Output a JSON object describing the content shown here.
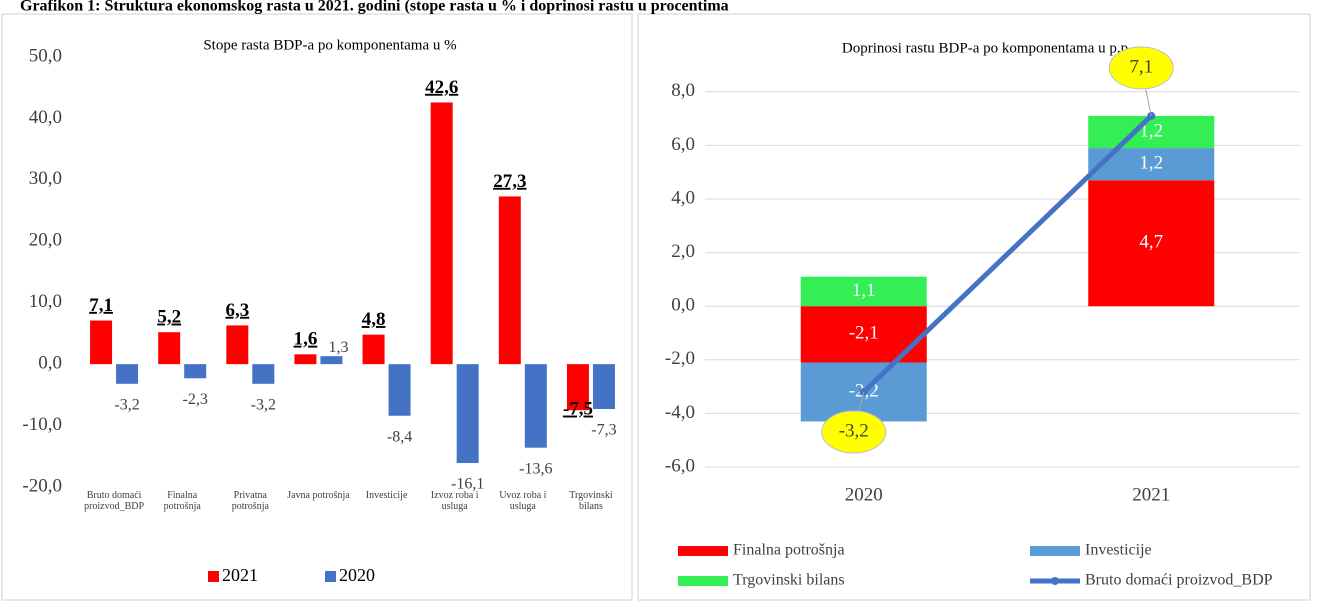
{
  "title": "Grafikon 1: Struktura ekonomskog rasta u 2021. godini (stope rasta u % i doprinosi rastu u procentima",
  "chart_data": [
    {
      "type": "bar",
      "title": "Stope rasta BDP-a po komponentama u %",
      "categories": [
        "Bruto domaći proizvod_BDP",
        "Finalna potrošnja",
        "Privatna potrošnja",
        "Javna potrošnja",
        "Investicije",
        "Izvoz roba i usluga",
        "Uvoz roba i usluga",
        "Trgovinski bilans"
      ],
      "series": [
        {
          "name": "2021",
          "color": "#ff0000",
          "values": [
            7.1,
            5.2,
            6.3,
            1.6,
            4.8,
            42.6,
            27.3,
            -7.5
          ],
          "value_labels": [
            "7,1",
            "5,2",
            "6,3",
            "1,6",
            "4,8",
            "42,6",
            "27,3",
            "-7,5"
          ]
        },
        {
          "name": "2020",
          "color": "#4472c4",
          "values": [
            -3.2,
            -2.3,
            -3.2,
            1.3,
            -8.4,
            -16.1,
            -13.6,
            -7.3
          ],
          "value_labels": [
            "-3,2",
            "-2,3",
            "-3,2",
            "1,3",
            "-8,4",
            "-16,1",
            "-13,6",
            "-7,3"
          ]
        }
      ],
      "ylim": [
        -20,
        50
      ],
      "yticks": [
        {
          "value": -20,
          "label": "-20,0"
        },
        {
          "value": -10,
          "label": "-10,0"
        },
        {
          "value": 0,
          "label": "0,0"
        },
        {
          "value": 10,
          "label": "10,0"
        },
        {
          "value": 20,
          "label": "20,0"
        },
        {
          "value": 30,
          "label": "30,0"
        },
        {
          "value": 40,
          "label": "40,0"
        },
        {
          "value": 50,
          "label": "50,0"
        }
      ],
      "grid": false,
      "legend": "bottom"
    },
    {
      "type": "stacked_bar",
      "title": "Doprinosi rastu BDP-a po komponentama u p.p",
      "categories": [
        "2020",
        "2021"
      ],
      "series": [
        {
          "name": "Finalna potrošnja",
          "color": "#ff0000",
          "values": [
            -2.1,
            4.7
          ],
          "value_labels": [
            "-2,1",
            "4,7"
          ]
        },
        {
          "name": "Investicije",
          "color": "#5b9bd5",
          "values": [
            -2.2,
            1.2
          ],
          "value_labels": [
            "-2,2",
            "1,2"
          ]
        },
        {
          "name": "Trgovinski bilans",
          "color": "#33ee55",
          "values": [
            1.1,
            1.2
          ],
          "value_labels": [
            "1,1",
            "1,2"
          ]
        },
        {
          "name": "Bruto domaći proizvod_BDP",
          "color": "#4472c4",
          "kind": "line",
          "values": [
            -3.2,
            7.1
          ],
          "value_labels": [
            "-3,2",
            "7,1"
          ]
        }
      ],
      "ylim": [
        -6,
        9
      ],
      "yticks": [
        {
          "value": -6,
          "label": "-6,0"
        },
        {
          "value": -4,
          "label": "-4,0"
        },
        {
          "value": -2,
          "label": "-2,0"
        },
        {
          "value": 0,
          "label": "0,0"
        },
        {
          "value": 2,
          "label": "2,0"
        },
        {
          "value": 4,
          "label": "4,0"
        },
        {
          "value": 6,
          "label": "6,0"
        },
        {
          "value": 8,
          "label": "8,0"
        }
      ],
      "grid": true,
      "legend": "bottom"
    }
  ]
}
